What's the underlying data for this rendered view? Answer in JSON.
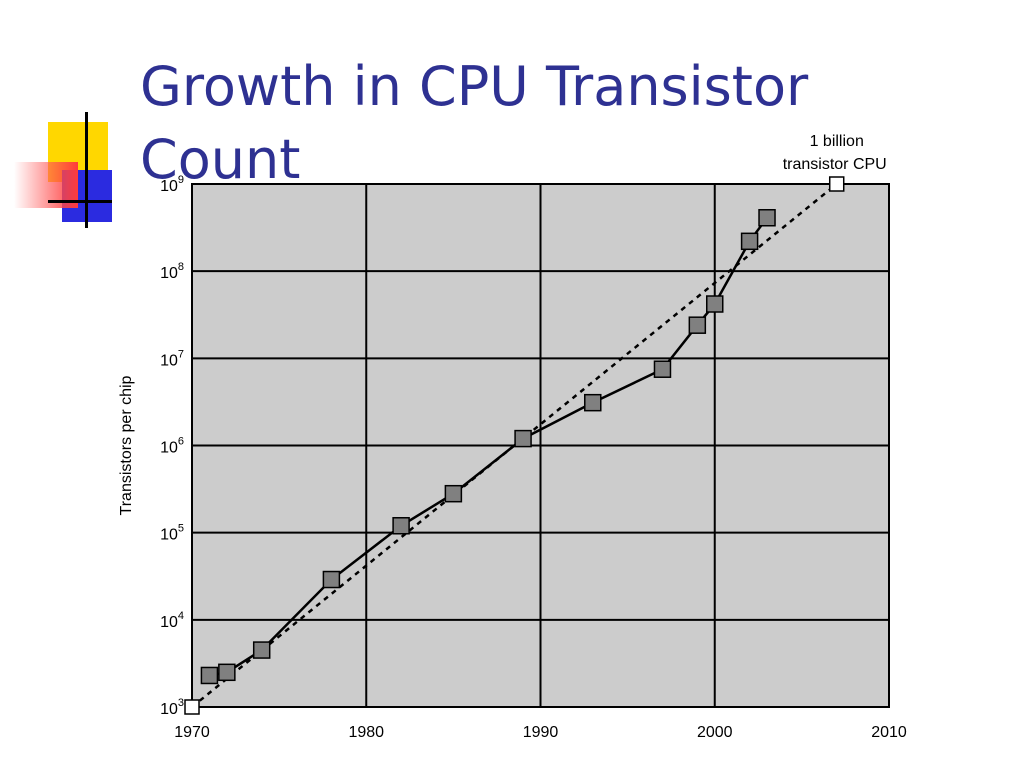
{
  "slide": {
    "title_line1": "Growth in CPU Transistor",
    "title_line2": "Count"
  },
  "colors": {
    "title": "#2e3192",
    "plot_bg": "#cccccc",
    "marker_fill": "#808080",
    "deco_yellow": "#ffd700",
    "deco_blue": "#2b2be0",
    "deco_red": "#ff3b3b"
  },
  "chart_data": {
    "type": "line",
    "ylabel": "Transistors per chip",
    "xlabel": "",
    "xlim": [
      1970,
      2010
    ],
    "ylim": [
      1000,
      1000000000
    ],
    "y_scale": "log",
    "x_ticks": [
      "1970",
      "1980",
      "1990",
      "2000",
      "2010"
    ],
    "y_ticks": [
      {
        "base": "10",
        "exp": "3",
        "value": 1000
      },
      {
        "base": "10",
        "exp": "4",
        "value": 10000
      },
      {
        "base": "10",
        "exp": "5",
        "value": 100000
      },
      {
        "base": "10",
        "exp": "6",
        "value": 1000000
      },
      {
        "base": "10",
        "exp": "7",
        "value": 10000000
      },
      {
        "base": "10",
        "exp": "8",
        "value": 100000000
      },
      {
        "base": "10",
        "exp": "9",
        "value": 1000000000
      }
    ],
    "grid": true,
    "series": [
      {
        "style": "solid-with-square-markers",
        "x": [
          1971,
          1972,
          1974,
          1978,
          1982,
          1985,
          1989,
          1993,
          1997,
          1999,
          2000,
          2002,
          2003
        ],
        "y": [
          2300,
          2500,
          4500,
          29000,
          120000,
          280000,
          1200000,
          3100000,
          7500000,
          24000000,
          42000000,
          220000000,
          410000000
        ]
      },
      {
        "style": "dotted-trend",
        "x": [
          1970,
          2007
        ],
        "y": [
          1000,
          1000000000
        ],
        "endpoint_label_line1": "1 billion",
        "endpoint_label_line2": "transistor CPU"
      }
    ]
  }
}
